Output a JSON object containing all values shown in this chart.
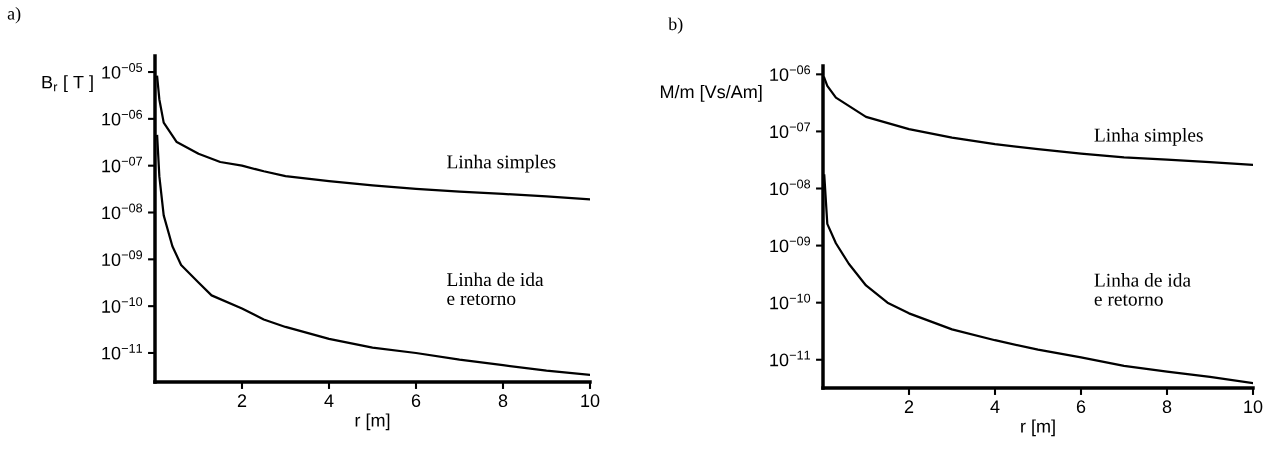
{
  "chart_data": [
    {
      "type": "line",
      "title": "a)",
      "ylabel": "B$_{r}$ [ T ]",
      "xlabel": "r [m]",
      "log": "y",
      "xlim": [
        0,
        10
      ],
      "xticks": [
        2,
        4,
        6,
        8,
        10
      ],
      "ylim": [
        2.4e-12,
        2.2e-05
      ],
      "yticks": [
        {
          "value": 1e-05,
          "label": "10$^{−05}$"
        },
        {
          "value": 1e-06,
          "label": "10$^{−06}$"
        },
        {
          "value": 1e-07,
          "label": "10$^{−07}$"
        },
        {
          "value": 1e-08,
          "label": "10$^{−08}$"
        },
        {
          "value": 1e-09,
          "label": "10$^{−09}$"
        },
        {
          "value": 1e-10,
          "label": "10$^{−10}$"
        },
        {
          "value": 1e-11,
          "label": "10$^{−11}$"
        }
      ],
      "grid": false,
      "legend": false,
      "series": [
        {
          "name": "Linha simples",
          "color": "#000000",
          "x": [
            0.05,
            0.1,
            0.2,
            0.5,
            1,
            1.5,
            2,
            2.5,
            3,
            4,
            5,
            6,
            7,
            8,
            9,
            10
          ],
          "values": [
            7.9e-06,
            2.6e-06,
            8.3e-07,
            3.2e-07,
            1.8e-07,
            1.2e-07,
            1e-07,
            7.6e-08,
            6e-08,
            4.7e-08,
            3.8e-08,
            3.2e-08,
            2.8e-08,
            2.5e-08,
            2.2e-08,
            1.9e-08
          ]
        },
        {
          "name": "Linha de ida\ne retorno",
          "color": "#000000",
          "x": [
            0.05,
            0.1,
            0.2,
            0.4,
            0.6,
            1,
            1.3,
            2,
            2.5,
            3,
            4,
            5,
            6,
            7,
            8,
            9,
            10
          ],
          "values": [
            4.3e-07,
            5.9e-08,
            8.7e-09,
            1.9e-09,
            7.6e-10,
            3.2e-10,
            1.7e-10,
            8.9e-11,
            5.2e-11,
            3.6e-11,
            2e-11,
            1.3e-11,
            1e-11,
            7.2e-12,
            5.5e-12,
            4.2e-12,
            3.4e-12
          ]
        }
      ]
    },
    {
      "type": "line",
      "title": "b)",
      "ylabel": "M/m [Vs/Am]",
      "xlabel": "r [m]",
      "log": "y",
      "xlim": [
        0,
        10
      ],
      "xticks": [
        2,
        4,
        6,
        8,
        10
      ],
      "ylim": [
        3.2e-12,
        1.4e-06
      ],
      "yticks": [
        {
          "value": 1e-06,
          "label": "10$^{−06}$"
        },
        {
          "value": 1e-07,
          "label": "10$^{−07}$"
        },
        {
          "value": 1e-08,
          "label": "10$^{−08}$"
        },
        {
          "value": 1e-09,
          "label": "10$^{−09}$"
        },
        {
          "value": 1e-10,
          "label": "10$^{−10}$"
        },
        {
          "value": 1e-11,
          "label": "10$^{−11}$"
        }
      ],
      "grid": false,
      "legend": false,
      "series": [
        {
          "name": "Linha simples",
          "color": "#000000",
          "x": [
            0.03,
            0.1,
            0.3,
            0.6,
            1,
            2,
            3,
            4,
            5,
            6,
            7,
            8,
            9,
            10
          ],
          "values": [
            8.7e-07,
            6.3e-07,
            3.9e-07,
            2.8e-07,
            1.8e-07,
            1.1e-07,
            7.8e-08,
            6e-08,
            4.9e-08,
            4.1e-08,
            3.5e-08,
            3.2e-08,
            2.9e-08,
            2.6e-08
          ]
        },
        {
          "name": "Linha de ida\ne retorno",
          "color": "#000000",
          "x": [
            0.03,
            0.1,
            0.3,
            0.6,
            1,
            1.5,
            2,
            3,
            4,
            5,
            6,
            7,
            8,
            9,
            10
          ],
          "values": [
            1.7e-08,
            2.4e-09,
            1.1e-09,
            4.8e-10,
            2e-10,
            1e-10,
            6.5e-11,
            3.4e-11,
            2.2e-11,
            1.5e-11,
            1.1e-11,
            7.8e-12,
            6.2e-12,
            5e-12,
            3.9e-12
          ]
        }
      ]
    }
  ]
}
